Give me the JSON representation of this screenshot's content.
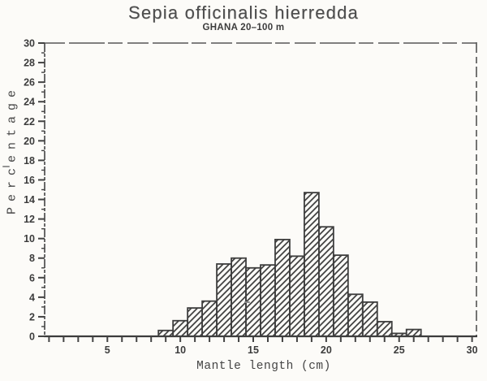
{
  "page": {
    "paper_color": "#fcfbf8",
    "ink_color": "#434343"
  },
  "chart_data": {
    "type": "bar",
    "title": "Sepia officinalis hierredda",
    "subtitle": "GHANA 20–100 m",
    "xlabel": "Mantle length (cm)",
    "ylabel": "Percentage",
    "x": [
      9,
      10,
      11,
      12,
      13,
      14,
      15,
      16,
      17,
      18,
      19,
      20,
      21,
      22,
      23,
      24,
      25,
      26
    ],
    "values": [
      0.6,
      1.6,
      2.9,
      3.6,
      7.4,
      8.0,
      7.0,
      7.3,
      9.9,
      8.2,
      14.7,
      11.2,
      8.3,
      4.3,
      3.5,
      1.5,
      0.3,
      0.7
    ],
    "bar_width": 1.0,
    "bar_fill": "forward-diagonal-hatch",
    "xlim": [
      0.7,
      30.3
    ],
    "ylim": [
      0,
      30
    ],
    "x_tick_step": 1,
    "x_label_ticks": [
      5,
      10,
      15,
      20,
      25,
      30
    ],
    "y_label_step": 2,
    "y_minor_step": 1,
    "grid": false,
    "legend": null,
    "frame": "box-with-dashed-top-right"
  }
}
